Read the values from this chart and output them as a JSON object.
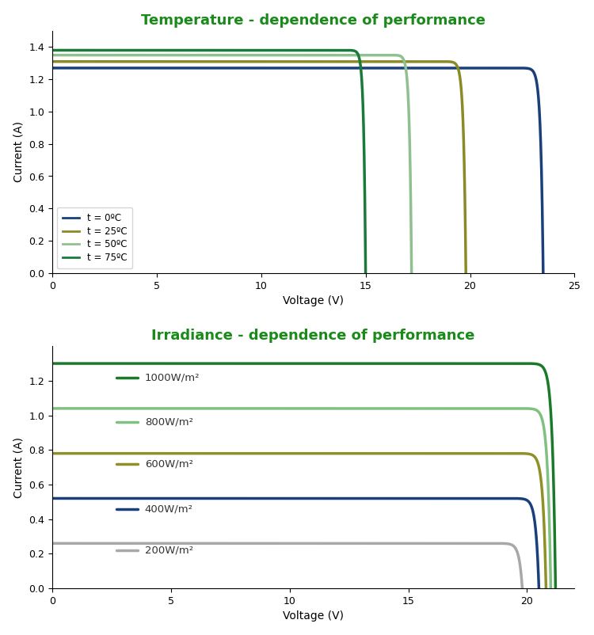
{
  "top_title": "Temperature - dependence of performance",
  "bottom_title": "Irradiance - dependence of performance",
  "title_color": "#1a8a1a",
  "xlabel": "Voltage (V)",
  "ylabel": "Current (A)",
  "top": {
    "colors": [
      "#1a3f7a",
      "#8a8a28",
      "#90c090",
      "#1a7a3a"
    ],
    "labels": [
      "t = 0ºC",
      "t = 25ºC",
      "t = 50ºC",
      "t = 75ºC"
    ],
    "Isc": [
      1.27,
      1.31,
      1.35,
      1.38
    ],
    "Voc": [
      23.5,
      19.8,
      17.2,
      15.0
    ],
    "n_vals": [
      4.5,
      4.2,
      3.8,
      3.5
    ],
    "xlim": [
      0,
      25
    ],
    "ylim": [
      0,
      1.5
    ],
    "yticks": [
      0,
      0.2,
      0.4,
      0.6,
      0.8,
      1.0,
      1.2,
      1.4
    ]
  },
  "bottom": {
    "colors": [
      "#1a7a2a",
      "#80c080",
      "#909028",
      "#1a3f7a",
      "#a8a8a8"
    ],
    "labels": [
      "1000W/m²",
      "800W/m²",
      "600W/m²",
      "400W/m²",
      "200W/m²"
    ],
    "Isc": [
      1.3,
      1.04,
      0.78,
      0.52,
      0.26
    ],
    "Voc": [
      21.2,
      21.0,
      20.8,
      20.5,
      19.8
    ],
    "n_vals": [
      5.0,
      5.0,
      5.0,
      5.0,
      5.0
    ],
    "ann_x": [
      3.5,
      3.5,
      3.5,
      3.5,
      3.5
    ],
    "ann_y": [
      1.22,
      0.96,
      0.72,
      0.46,
      0.22
    ],
    "xlim": [
      0,
      22
    ],
    "ylim": [
      0,
      1.4
    ],
    "yticks": [
      0,
      0.2,
      0.4,
      0.6,
      0.8,
      1.0,
      1.2
    ]
  }
}
